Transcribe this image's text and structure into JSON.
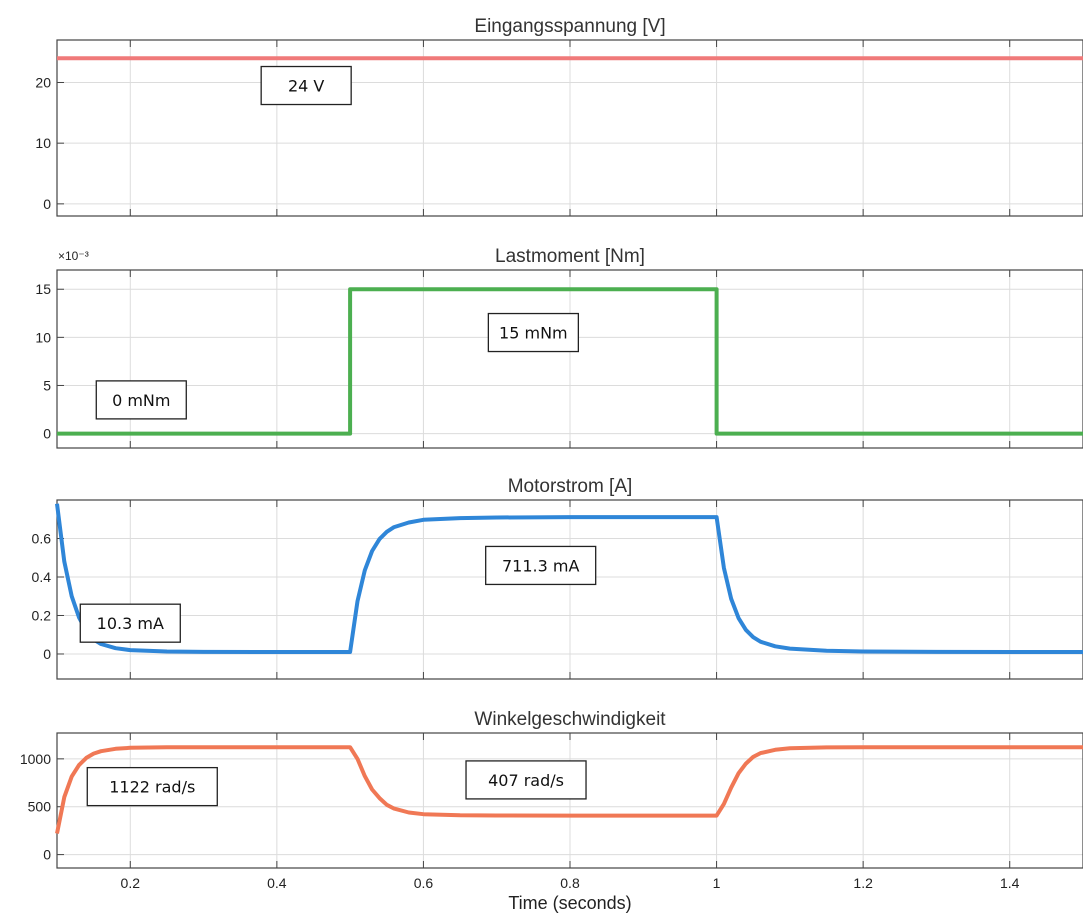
{
  "x_axis_label": "Time (seconds)",
  "chart_data": [
    {
      "type": "line",
      "title": "Eingangsspannung [V]",
      "xlim": [
        0.1,
        1.5
      ],
      "ylim": [
        -2,
        27
      ],
      "yticks": [
        0,
        10,
        20
      ],
      "ytick_labels": [
        "0",
        "10",
        "20"
      ],
      "xticks": [
        0.2,
        0.4,
        0.6,
        0.8,
        1,
        1.2,
        1.4
      ],
      "xtick_labels": [],
      "grid": true,
      "color": "#f07a7a",
      "series": [
        {
          "x": [
            0.1,
            1.5
          ],
          "y": [
            24,
            24
          ]
        }
      ],
      "annotation": {
        "text": "24 V",
        "x": 0.44,
        "y": 19.5
      }
    },
    {
      "type": "line",
      "title": "Lastmoment [Nm]",
      "exponent": "×10⁻³",
      "xlim": [
        0.1,
        1.5
      ],
      "ylim": [
        -0.0015,
        0.017
      ],
      "yticks": [
        0,
        0.005,
        0.01,
        0.015
      ],
      "ytick_labels": [
        "0",
        "5",
        "10",
        "15"
      ],
      "xticks": [
        0.2,
        0.4,
        0.6,
        0.8,
        1,
        1.2,
        1.4
      ],
      "xtick_labels": [],
      "grid": true,
      "color": "#4caf50",
      "series": [
        {
          "x": [
            0.1,
            0.5,
            0.5,
            1.0,
            1.0,
            1.5
          ],
          "y": [
            0,
            0,
            0.015,
            0.015,
            0,
            0
          ]
        }
      ],
      "annotations": [
        {
          "text": "0 mNm",
          "x": 0.215,
          "y": 0.0035
        },
        {
          "text": "15 mNm",
          "x": 0.75,
          "y": 0.0105
        }
      ]
    },
    {
      "type": "line",
      "title": "Motorstrom [A]",
      "xlim": [
        0.1,
        1.5
      ],
      "ylim": [
        -0.13,
        0.8
      ],
      "yticks": [
        0,
        0.2,
        0.4,
        0.6
      ],
      "ytick_labels": [
        "0",
        "0.2",
        "0.4",
        "0.6"
      ],
      "xticks": [
        0.2,
        0.4,
        0.6,
        0.8,
        1,
        1.2,
        1.4
      ],
      "xtick_labels": [],
      "grid": true,
      "color": "#2f86d8",
      "series": [
        {
          "x": [
            0.1,
            0.11,
            0.12,
            0.13,
            0.14,
            0.15,
            0.16,
            0.18,
            0.2,
            0.25,
            0.3,
            0.4,
            0.5,
            0.5,
            0.51,
            0.52,
            0.53,
            0.54,
            0.55,
            0.56,
            0.58,
            0.6,
            0.65,
            0.7,
            0.8,
            0.9,
            1.0,
            1.0,
            1.01,
            1.02,
            1.03,
            1.04,
            1.05,
            1.06,
            1.08,
            1.1,
            1.15,
            1.2,
            1.3,
            1.4,
            1.5
          ],
          "y": [
            0.78,
            0.48,
            0.3,
            0.19,
            0.12,
            0.076,
            0.052,
            0.03,
            0.02,
            0.013,
            0.011,
            0.0103,
            0.0103,
            0.0103,
            0.274,
            0.435,
            0.535,
            0.597,
            0.635,
            0.659,
            0.683,
            0.697,
            0.706,
            0.709,
            0.711,
            0.7113,
            0.7113,
            0.7113,
            0.447,
            0.286,
            0.186,
            0.125,
            0.087,
            0.064,
            0.04,
            0.028,
            0.017,
            0.013,
            0.0108,
            0.0104,
            0.0103
          ]
        }
      ],
      "annotations": [
        {
          "text": "10.3 mA",
          "x": 0.2,
          "y": 0.16
        },
        {
          "text": "711.3 mA",
          "x": 0.76,
          "y": 0.46
        }
      ]
    },
    {
      "type": "line",
      "title": "Winkelgeschwindigkeit",
      "xlim": [
        0.1,
        1.5
      ],
      "ylim": [
        -140,
        1270
      ],
      "yticks": [
        0,
        500,
        1000
      ],
      "ytick_labels": [
        "0",
        "500",
        "1000"
      ],
      "xticks": [
        0.2,
        0.4,
        0.6,
        0.8,
        1,
        1.2,
        1.4
      ],
      "xtick_labels": [
        "0.2",
        "0.4",
        "0.6",
        "0.8",
        "1",
        "1.2",
        "1.4"
      ],
      "grid": true,
      "color": "#f07855",
      "series": [
        {
          "x": [
            0.1,
            0.11,
            0.12,
            0.13,
            0.14,
            0.15,
            0.16,
            0.18,
            0.2,
            0.25,
            0.3,
            0.4,
            0.5,
            0.5,
            0.51,
            0.52,
            0.53,
            0.54,
            0.55,
            0.56,
            0.58,
            0.6,
            0.65,
            0.7,
            0.8,
            0.9,
            1.0,
            1.0,
            1.01,
            1.02,
            1.03,
            1.04,
            1.05,
            1.06,
            1.08,
            1.1,
            1.15,
            1.2,
            1.3,
            1.4,
            1.5
          ],
          "y": [
            220,
            600,
            815,
            935,
            1010,
            1055,
            1080,
            1105,
            1115,
            1121,
            1122,
            1122,
            1122,
            1122,
            1000,
            820,
            680,
            590,
            520,
            480,
            440,
            422,
            410,
            408,
            407,
            407,
            407,
            407,
            530,
            700,
            850,
            950,
            1020,
            1060,
            1095,
            1110,
            1120,
            1122,
            1122,
            1122,
            1122
          ]
        }
      ],
      "annotations": [
        {
          "text": "1122 rad/s",
          "x": 0.23,
          "y": 710
        },
        {
          "text": "407 rad/s",
          "x": 0.74,
          "y": 780
        }
      ]
    }
  ]
}
